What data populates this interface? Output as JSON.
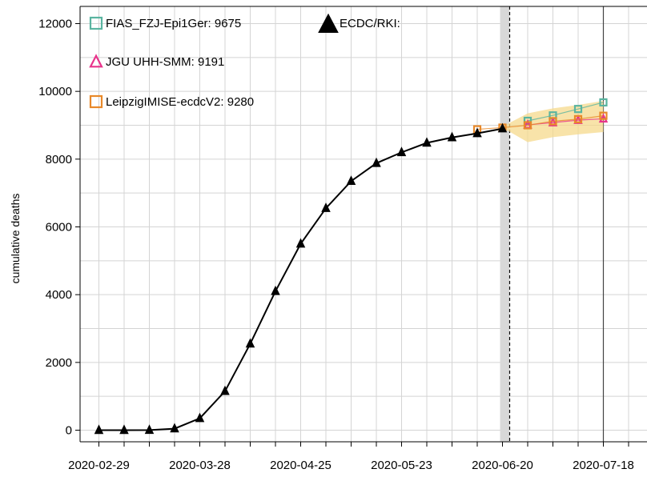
{
  "chart_data": {
    "type": "line",
    "ylabel": "cumulative deaths",
    "xlabel": "",
    "ylim": [
      0,
      12000
    ],
    "yticks": [
      0,
      2000,
      4000,
      6000,
      8000,
      10000,
      12000
    ],
    "xtick_labels": [
      "2020-02-29",
      "2020-03-28",
      "2020-04-25",
      "2020-05-23",
      "2020-06-20",
      "2020-07-18"
    ],
    "grid": true,
    "legend_position": "top-left",
    "forecast_date": "2020-06-22",
    "observed": {
      "name": "ECDC/RKI:",
      "color": "#000000",
      "x": [
        "2020-02-29",
        "2020-03-07",
        "2020-03-14",
        "2020-03-21",
        "2020-03-28",
        "2020-04-04",
        "2020-04-11",
        "2020-04-18",
        "2020-04-25",
        "2020-05-02",
        "2020-05-09",
        "2020-05-16",
        "2020-05-23",
        "2020-05-30",
        "2020-06-06",
        "2020-06-13",
        "2020-06-20"
      ],
      "y": [
        0,
        0,
        2,
        45,
        350,
        1150,
        2550,
        4100,
        5500,
        6550,
        7350,
        7880,
        8200,
        8480,
        8640,
        8760,
        8900
      ]
    },
    "series": [
      {
        "name": "FIAS_FZJ-Epi1Ger: 9675",
        "color": "#5ab4a0",
        "marker": "square",
        "x": [
          "2020-06-27",
          "2020-07-04",
          "2020-07-11",
          "2020-07-18"
        ],
        "values": [
          9130,
          9290,
          9480,
          9675
        ]
      },
      {
        "name": "JGU  UHH-SMM: 9191",
        "color": "#e8348b",
        "marker": "triangle",
        "x": [
          "2020-06-27",
          "2020-07-04",
          "2020-07-11",
          "2020-07-18"
        ],
        "values": [
          9010,
          9080,
          9150,
          9191
        ]
      },
      {
        "name": "LeipzigIMISE-ecdcV2: 9280",
        "color": "#e8892a",
        "marker": "square",
        "x": [
          "2020-06-13",
          "2020-06-20",
          "2020-06-27",
          "2020-07-04",
          "2020-07-11",
          "2020-07-18"
        ],
        "values": [
          8880,
          8930,
          9000,
          9120,
          9180,
          9280
        ]
      }
    ],
    "interval": {
      "color": "#f5d98c",
      "x": [
        "2020-06-20",
        "2020-06-27",
        "2020-07-04",
        "2020-07-11",
        "2020-07-18"
      ],
      "lower": [
        8930,
        8500,
        8650,
        8730,
        8800
      ],
      "upper": [
        8960,
        9350,
        9500,
        9600,
        9720
      ]
    }
  }
}
